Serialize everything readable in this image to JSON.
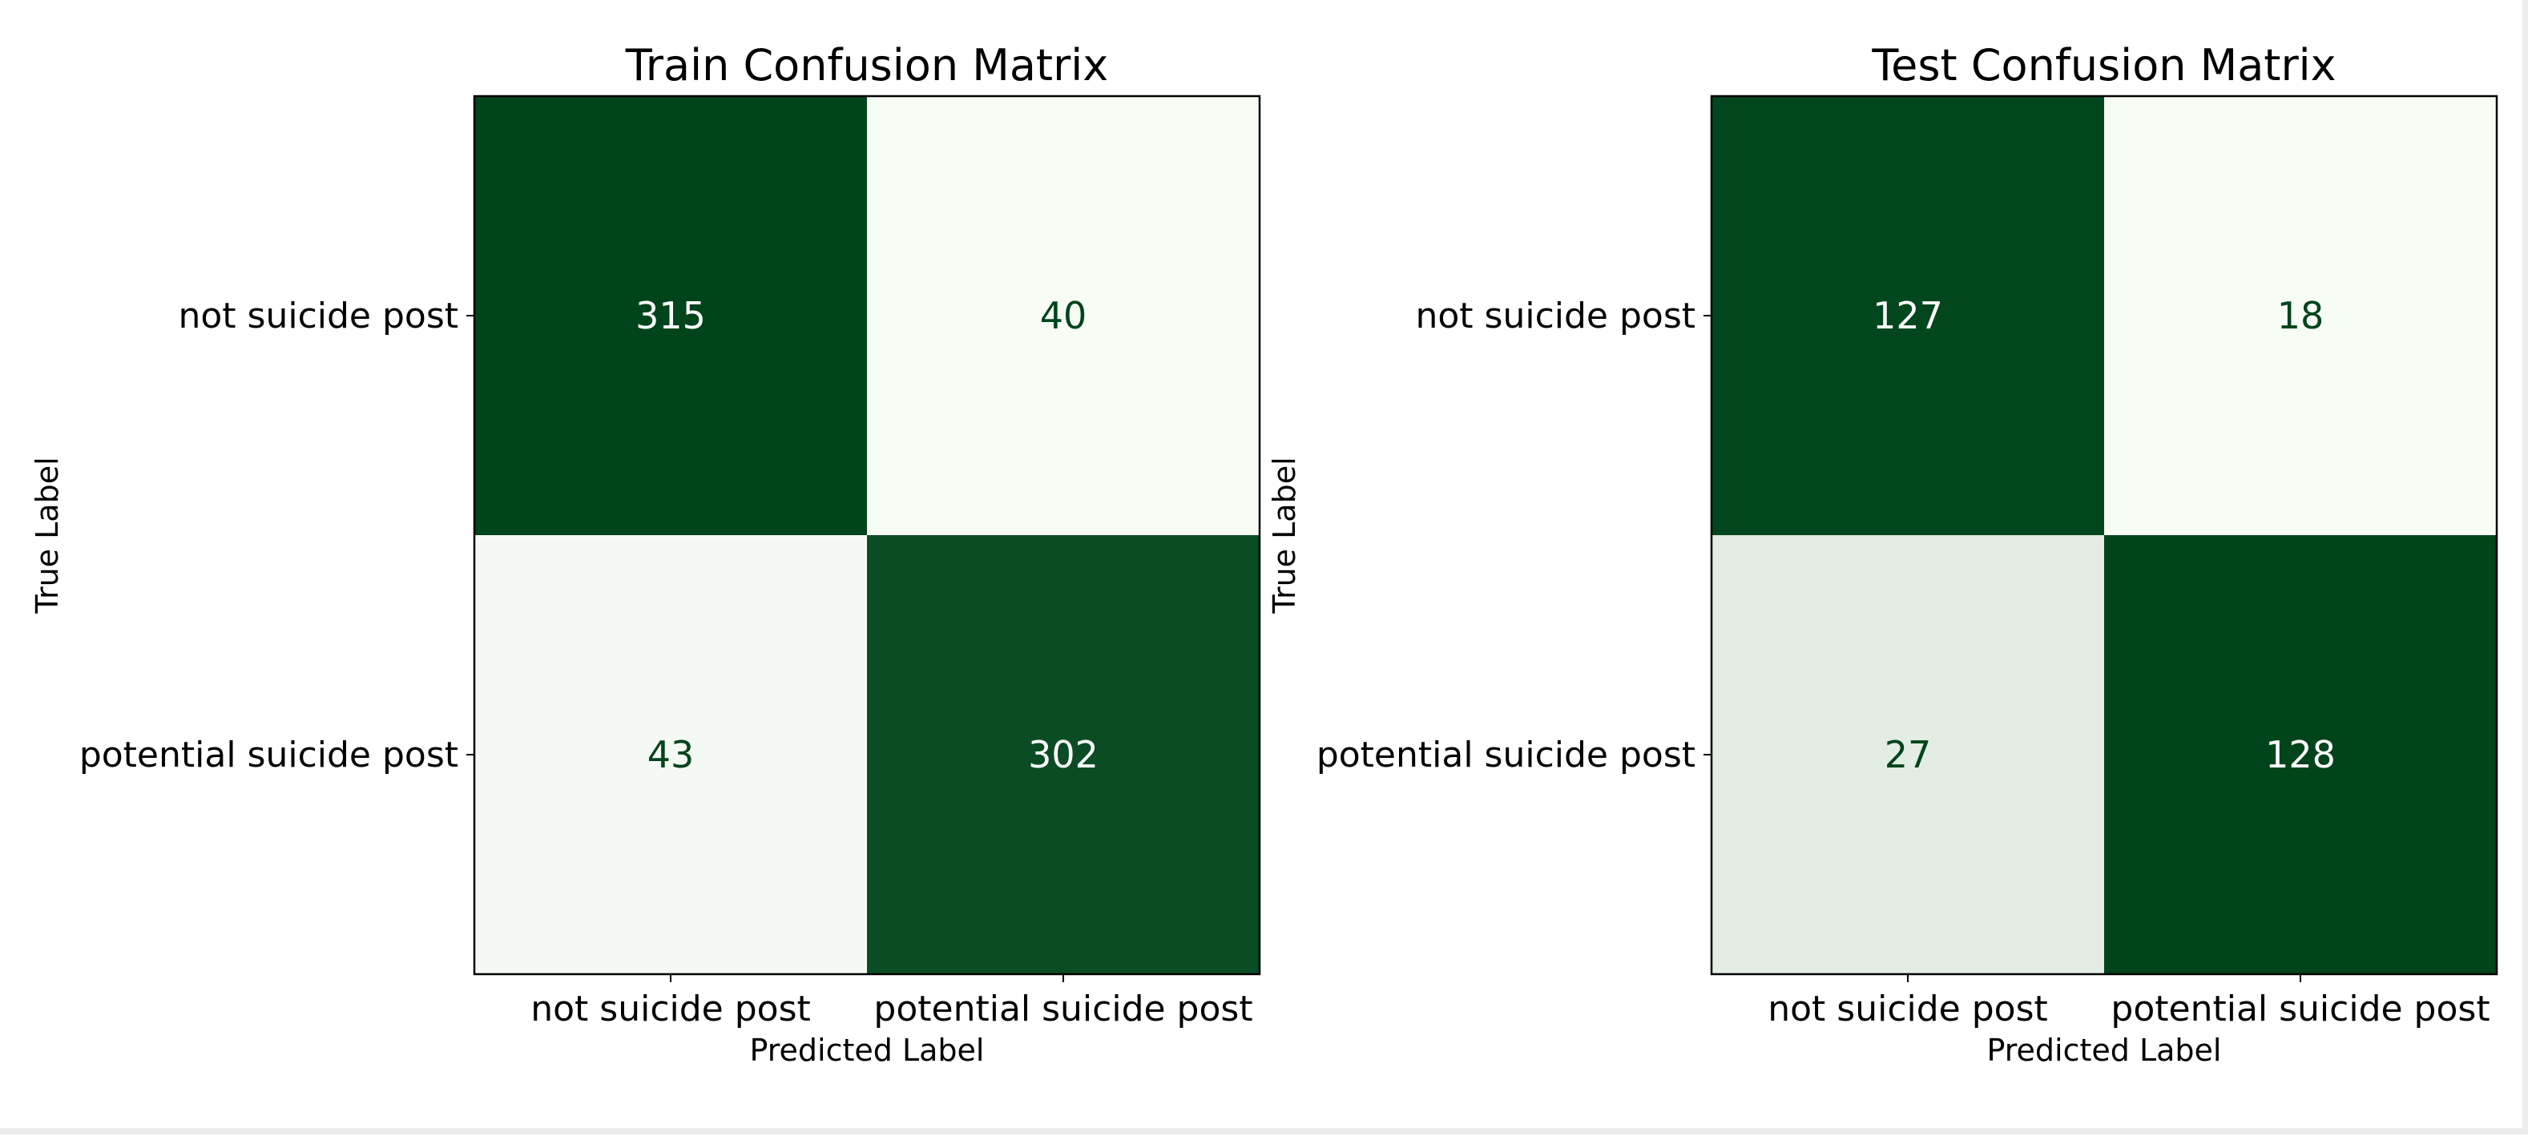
{
  "chart_data": [
    {
      "type": "heatmap",
      "title": "Train Confusion Matrix",
      "xlabel": "Predicted Label",
      "ylabel": "True Label",
      "x_tick_labels": [
        "not suicide post",
        "potential suicide post"
      ],
      "y_tick_labels": [
        "not suicide post",
        "potential suicide post"
      ],
      "values": [
        [
          315,
          40
        ],
        [
          43,
          302
        ]
      ],
      "colormap": "Greens",
      "colorbar": false
    },
    {
      "type": "heatmap",
      "title": "Test Confusion Matrix",
      "xlabel": "Predicted Label",
      "ylabel": "True Label",
      "x_tick_labels": [
        "not suicide post",
        "potential suicide post"
      ],
      "y_tick_labels": [
        "not suicide post",
        "potential suicide post"
      ],
      "values": [
        [
          127,
          18
        ],
        [
          27,
          128
        ]
      ],
      "colormap": "Greens",
      "colorbar": false
    }
  ],
  "colors": {
    "dark_green": "#00441b",
    "light": "#f7fcf5",
    "text_dark": "#00441b",
    "text_light": "#ffffff"
  }
}
